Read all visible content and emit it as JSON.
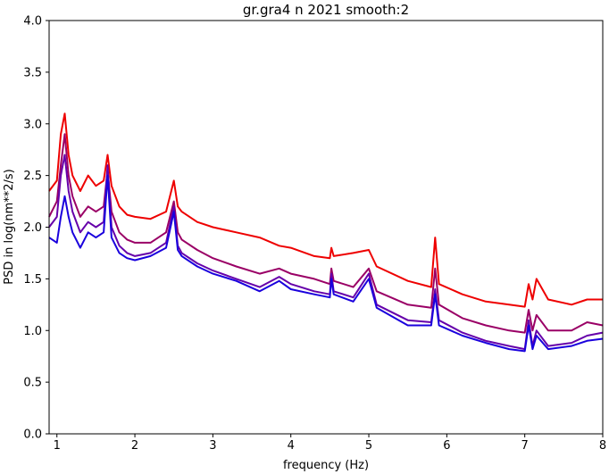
{
  "chart_data": {
    "type": "line",
    "title": "gr.gra4 n 2021 smooth:2",
    "xlabel": "frequency (Hz)",
    "ylabel": "PSD in log(nm**2/s)",
    "xlim": [
      0.9,
      8.0
    ],
    "ylim": [
      0.0,
      4.0
    ],
    "xticks": [
      1,
      2,
      3,
      4,
      5,
      6,
      7,
      8
    ],
    "yticks": [
      0.0,
      0.5,
      1.0,
      1.5,
      2.0,
      2.5,
      3.0,
      3.5,
      4.0
    ],
    "xtick_labels": [
      "1",
      "2",
      "3",
      "4",
      "5",
      "6",
      "7",
      "8"
    ],
    "ytick_labels": [
      "0.0",
      "0.5",
      "1.0",
      "1.5",
      "2.0",
      "2.5",
      "3.0",
      "3.5",
      "4.0"
    ],
    "grid": false,
    "series": [
      {
        "color": "#ee0000",
        "x": [
          0.9,
          1.0,
          1.05,
          1.1,
          1.15,
          1.2,
          1.3,
          1.4,
          1.5,
          1.6,
          1.65,
          1.7,
          1.8,
          1.9,
          2.0,
          2.2,
          2.4,
          2.5,
          2.55,
          2.6,
          2.8,
          3.0,
          3.3,
          3.6,
          3.85,
          4.0,
          4.3,
          4.5,
          4.52,
          4.55,
          4.8,
          5.0,
          5.1,
          5.5,
          5.8,
          5.85,
          5.9,
          6.2,
          6.5,
          6.8,
          7.0,
          7.05,
          7.1,
          7.15,
          7.3,
          7.6,
          7.8,
          8.0
        ],
        "y": [
          2.35,
          2.45,
          2.9,
          3.1,
          2.7,
          2.5,
          2.35,
          2.5,
          2.4,
          2.45,
          2.7,
          2.4,
          2.2,
          2.12,
          2.1,
          2.08,
          2.15,
          2.45,
          2.2,
          2.15,
          2.05,
          2.0,
          1.95,
          1.9,
          1.82,
          1.8,
          1.72,
          1.7,
          1.8,
          1.72,
          1.75,
          1.78,
          1.62,
          1.48,
          1.42,
          1.9,
          1.45,
          1.35,
          1.28,
          1.25,
          1.23,
          1.45,
          1.3,
          1.5,
          1.3,
          1.25,
          1.3,
          1.3
        ]
      },
      {
        "color": "#9a0066",
        "x": [
          0.9,
          1.0,
          1.05,
          1.1,
          1.15,
          1.2,
          1.3,
          1.4,
          1.5,
          1.6,
          1.65,
          1.7,
          1.8,
          1.9,
          2.0,
          2.2,
          2.4,
          2.5,
          2.55,
          2.6,
          2.8,
          3.0,
          3.3,
          3.6,
          3.85,
          4.0,
          4.3,
          4.5,
          4.52,
          4.55,
          4.8,
          5.0,
          5.1,
          5.5,
          5.8,
          5.85,
          5.9,
          6.2,
          6.5,
          6.8,
          7.0,
          7.05,
          7.1,
          7.15,
          7.3,
          7.6,
          7.8,
          8.0
        ],
        "y": [
          2.1,
          2.25,
          2.6,
          2.9,
          2.5,
          2.3,
          2.1,
          2.2,
          2.15,
          2.2,
          2.55,
          2.15,
          1.95,
          1.88,
          1.85,
          1.85,
          1.95,
          2.25,
          1.95,
          1.88,
          1.78,
          1.7,
          1.62,
          1.55,
          1.6,
          1.55,
          1.5,
          1.45,
          1.6,
          1.48,
          1.42,
          1.6,
          1.38,
          1.25,
          1.22,
          1.6,
          1.25,
          1.12,
          1.05,
          1.0,
          0.98,
          1.2,
          1.0,
          1.15,
          1.0,
          1.0,
          1.08,
          1.05
        ]
      },
      {
        "color": "#6600aa",
        "x": [
          0.9,
          1.0,
          1.05,
          1.1,
          1.15,
          1.2,
          1.3,
          1.4,
          1.5,
          1.6,
          1.65,
          1.7,
          1.8,
          1.9,
          2.0,
          2.2,
          2.4,
          2.5,
          2.55,
          2.6,
          2.8,
          3.0,
          3.3,
          3.6,
          3.85,
          4.0,
          4.3,
          4.5,
          4.52,
          4.55,
          4.8,
          5.0,
          5.1,
          5.5,
          5.8,
          5.85,
          5.9,
          6.2,
          6.5,
          6.8,
          7.0,
          7.05,
          7.1,
          7.15,
          7.3,
          7.6,
          7.8,
          8.0
        ],
        "y": [
          2.0,
          2.1,
          2.5,
          2.7,
          2.35,
          2.15,
          1.95,
          2.05,
          2.0,
          2.05,
          2.6,
          2.0,
          1.82,
          1.75,
          1.72,
          1.75,
          1.85,
          2.2,
          1.82,
          1.75,
          1.65,
          1.58,
          1.5,
          1.42,
          1.52,
          1.45,
          1.38,
          1.35,
          1.55,
          1.38,
          1.32,
          1.55,
          1.25,
          1.1,
          1.08,
          1.4,
          1.1,
          0.98,
          0.9,
          0.85,
          0.82,
          1.1,
          0.85,
          1.0,
          0.85,
          0.88,
          0.95,
          0.98
        ]
      },
      {
        "color": "#1a00dd",
        "x": [
          0.9,
          1.0,
          1.05,
          1.1,
          1.15,
          1.2,
          1.3,
          1.4,
          1.5,
          1.6,
          1.65,
          1.7,
          1.8,
          1.9,
          2.0,
          2.2,
          2.4,
          2.5,
          2.55,
          2.6,
          2.8,
          3.0,
          3.3,
          3.6,
          3.85,
          4.0,
          4.3,
          4.5,
          4.52,
          4.55,
          4.8,
          5.0,
          5.1,
          5.5,
          5.8,
          5.85,
          5.9,
          6.2,
          6.5,
          6.8,
          7.0,
          7.05,
          7.1,
          7.15,
          7.3,
          7.6,
          7.8,
          8.0
        ],
        "y": [
          1.9,
          1.85,
          2.1,
          2.3,
          2.1,
          1.95,
          1.8,
          1.95,
          1.9,
          1.95,
          2.5,
          1.9,
          1.75,
          1.7,
          1.68,
          1.72,
          1.8,
          2.15,
          1.78,
          1.72,
          1.62,
          1.55,
          1.48,
          1.38,
          1.48,
          1.4,
          1.35,
          1.32,
          1.5,
          1.35,
          1.28,
          1.5,
          1.22,
          1.05,
          1.05,
          1.35,
          1.05,
          0.95,
          0.88,
          0.82,
          0.8,
          1.05,
          0.82,
          0.95,
          0.82,
          0.85,
          0.9,
          0.92
        ]
      }
    ]
  }
}
